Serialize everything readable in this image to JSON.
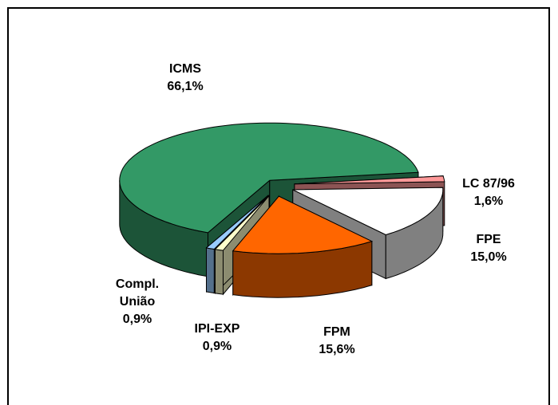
{
  "chart_data": {
    "type": "pie3d",
    "categories": [
      "LC 87/96",
      "FPE",
      "FPM",
      "IPI-EXP",
      "Compl. União",
      "ICMS"
    ],
    "values": [
      1.6,
      15.0,
      15.6,
      0.9,
      0.9,
      66.1
    ],
    "value_labels": [
      "1,6%",
      "15,0%",
      "15,6%",
      "0,9%",
      "0,9%",
      "66,1%"
    ],
    "colors": [
      "#ff9999",
      "#ffffff",
      "#ff6600",
      "#ffffcc",
      "#99ccff",
      "#339966"
    ]
  }
}
